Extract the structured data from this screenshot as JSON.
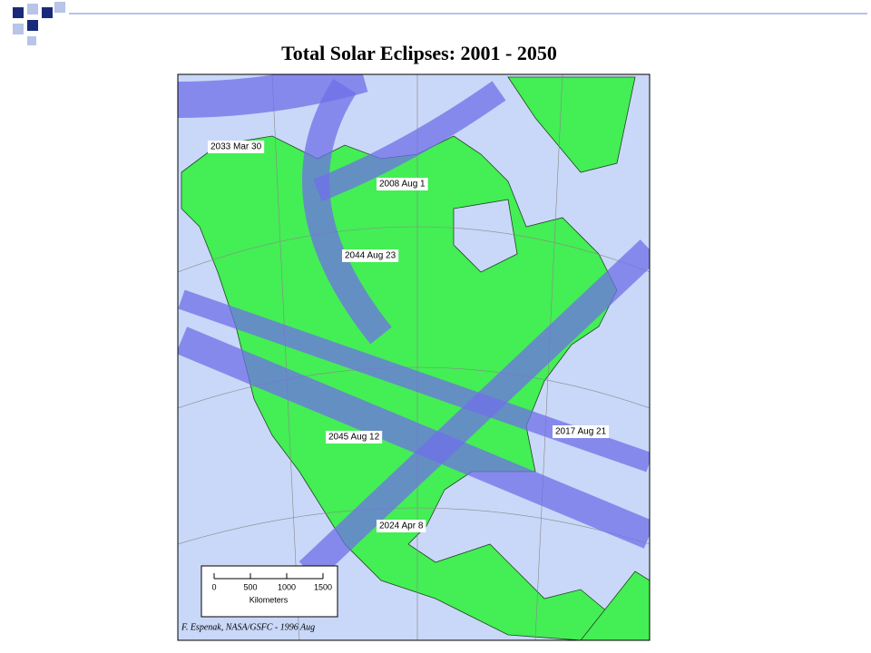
{
  "title": "Total Solar Eclipses: 2001 - 2050",
  "eclipses": [
    {
      "label": "2033 Mar 30"
    },
    {
      "label": "2008 Aug 1"
    },
    {
      "label": "2044 Aug 23"
    },
    {
      "label": "2045 Aug 12"
    },
    {
      "label": "2017 Aug 21"
    },
    {
      "label": "2024 Apr 8"
    }
  ],
  "scale": {
    "ticks": [
      0,
      500,
      1000,
      1500
    ],
    "unit": "Kilometers"
  },
  "credit": "F. Espenak, NASA/GSFC - 1996 Aug"
}
